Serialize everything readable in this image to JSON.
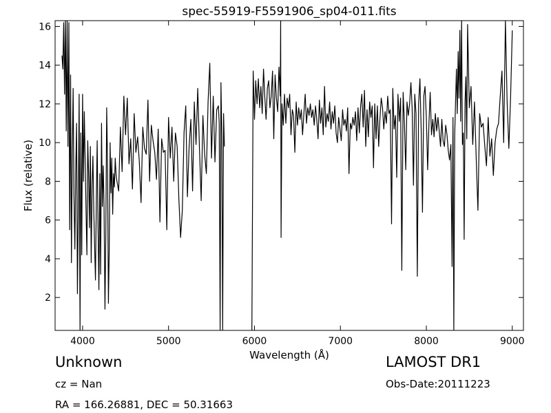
{
  "chart_data": {
    "type": "line",
    "title": "spec-55919-F5591906_sp04-011.fits",
    "xlabel": "Wavelength (Å)",
    "ylabel": "Flux (relative)",
    "xlim": [
      3680,
      9130
    ],
    "ylim": [
      0.3,
      16.3
    ],
    "xticks": [
      4000,
      5000,
      6000,
      7000,
      8000,
      9000
    ],
    "yticks": [
      2,
      4,
      6,
      8,
      10,
      12,
      14,
      16
    ],
    "grid": false,
    "legend": "none",
    "line_color": "#000000",
    "series": [
      {
        "segments": [
          {
            "x": [
              3760,
              3770,
              3780,
              3790,
              3800,
              3810,
              3820,
              3830,
              3840,
              3850,
              3860,
              3870,
              3880,
              3890,
              3900,
              3910,
              3920,
              3930,
              3940,
              3950,
              3960,
              3970,
              3980,
              3990,
              4000,
              4010,
              4020,
              4030,
              4040,
              4050,
              4060,
              4070,
              4080,
              4090,
              4100,
              4110,
              4120,
              4130,
              4140,
              4150,
              4160,
              4170,
              4180,
              4190,
              4200,
              4210,
              4220,
              4230,
              4240,
              4250,
              4260,
              4270,
              4280,
              4290,
              4300,
              4310,
              4320,
              4330,
              4340,
              4350,
              4360,
              4370,
              4380,
              4390,
              4400,
              4420,
              4440,
              4460,
              4480,
              4500,
              4520,
              4540,
              4560,
              4580,
              4600,
              4620,
              4640,
              4660,
              4680,
              4700,
              4720,
              4740,
              4760,
              4780,
              4800,
              4820,
              4840,
              4860,
              4880,
              4900,
              4920,
              4940,
              4960,
              4980,
              5000,
              5020,
              5040,
              5060,
              5080,
              5100,
              5120,
              5140,
              5160,
              5180,
              5200,
              5220,
              5240,
              5260,
              5280,
              5300,
              5320,
              5340,
              5360,
              5380,
              5400,
              5420,
              5440,
              5460,
              5480,
              5500,
              5520,
              5540,
              5560,
              5580,
              5590,
              5600,
              5610,
              5620,
              5630,
              5640,
              5650
            ],
            "y": [
              14.5,
              13.8,
              16.2,
              12.5,
              16.3,
              10.6,
              16.3,
              9.8,
              16.2,
              5.5,
              13.5,
              3.8,
              9.6,
              12.8,
              7.2,
              4.5,
              8.5,
              11.0,
              2.2,
              6.5,
              12.5,
              0.3,
              10.5,
              4.2,
              12.5,
              8.0,
              11.6,
              9.0,
              6.5,
              4.2,
              10.1,
              8.3,
              5.6,
              9.8,
              3.8,
              7.8,
              9.3,
              6.6,
              4.6,
              2.9,
              7.1,
              10.1,
              5.5,
              2.4,
              8.4,
              3.2,
              11.0,
              6.7,
              8.8,
              6.6,
              1.4,
              5.1,
              11.8,
              9.0,
              1.7,
              4.5,
              10.0,
              7.4,
              9.2,
              6.3,
              8.4,
              7.7,
              9.2,
              8.3,
              8.0,
              7.5,
              10.8,
              8.5,
              12.4,
              10.4,
              12.3,
              8.9,
              10.2,
              7.6,
              11.5,
              9.5,
              10.3,
              9.0,
              6.9,
              10.8,
              9.7,
              9.4,
              12.2,
              8.0,
              10.9,
              10.1,
              9.5,
              8.1,
              10.7,
              5.9,
              10.2,
              9.5,
              9.6,
              5.5,
              11.3,
              9.2,
              10.8,
              8.0,
              10.5,
              9.8,
              7.1,
              5.1,
              6.5,
              10.5,
              11.9,
              7.2,
              9.8,
              11.2,
              7.5,
              12.1,
              9.9,
              12.8,
              9.7,
              7.0,
              11.4,
              9.4,
              8.4,
              12.1,
              14.1,
              9.2,
              12.4,
              9.0,
              11.7,
              11.9,
              11.0,
              0.3,
              13.1,
              10.3,
              0.3,
              11.5,
              9.8
            ]
          },
          {
            "x": [
              5970,
              5985,
              6000,
              6015,
              6030,
              6045,
              6060,
              6075,
              6090,
              6105,
              6120,
              6135,
              6150,
              6165,
              6180,
              6195,
              6210,
              6225,
              6240,
              6255,
              6270,
              6285,
              6300,
              6305,
              6310,
              6320,
              6335,
              6350,
              6365,
              6380,
              6395,
              6410,
              6425,
              6440,
              6455,
              6470,
              6485,
              6500,
              6515,
              6530,
              6545,
              6560,
              6575,
              6590,
              6605,
              6620,
              6635,
              6650,
              6665,
              6680,
              6695,
              6710,
              6725,
              6740,
              6755,
              6770,
              6785,
              6800,
              6815,
              6830,
              6845,
              6860,
              6875,
              6890,
              6905,
              6920,
              6935,
              6950,
              6965,
              6980,
              6995,
              7010,
              7025,
              7040,
              7055,
              7070,
              7085,
              7100,
              7115,
              7130,
              7145,
              7160,
              7175,
              7190,
              7205,
              7220,
              7235,
              7250,
              7265,
              7280,
              7295,
              7310,
              7325,
              7340,
              7355,
              7370,
              7385,
              7400,
              7415,
              7430,
              7445,
              7460,
              7475,
              7490,
              7505,
              7520,
              7535,
              7550,
              7565,
              7580,
              7595,
              7610,
              7625,
              7640,
              7655,
              7670,
              7685,
              7700,
              7715,
              7730,
              7745,
              7760,
              7775,
              7790,
              7805,
              7820,
              7835,
              7850,
              7865,
              7880,
              7895,
              7910,
              7925,
              7940,
              7955,
              7970,
              7985,
              8000,
              8015,
              8030,
              8045,
              8060,
              8075,
              8090,
              8105,
              8120,
              8135,
              8150,
              8165,
              8180,
              8195,
              8210,
              8225,
              8240,
              8255,
              8270,
              8285,
              8300,
              8310,
              8320,
              8330,
              8340,
              8350,
              8360,
              8370,
              8380,
              8390,
              8400,
              8410,
              8420,
              8430,
              8440,
              8450,
              8460,
              8470,
              8480,
              8500,
              8520,
              8540,
              8560,
              8580,
              8600,
              8620,
              8640,
              8660,
              8680,
              8700,
              8720,
              8740,
              8760,
              8780,
              8800,
              8820,
              8840,
              8860,
              8880,
              8900,
              8920,
              8940,
              8960,
              8980,
              9000
            ],
            "y": [
              0.3,
              13.7,
              11.2,
              13.2,
              12.0,
              13.3,
              11.8,
              12.9,
              11.5,
              13.8,
              12.4,
              11.2,
              12.8,
              13.2,
              11.8,
              12.4,
              13.7,
              10.2,
              13.5,
              12.3,
              11.6,
              13.9,
              12.4,
              16.3,
              5.1,
              12.0,
              10.9,
              12.5,
              11.0,
              12.3,
              11.8,
              12.5,
              10.4,
              11.7,
              11.4,
              9.5,
              12.1,
              10.9,
              11.8,
              11.2,
              11.7,
              10.4,
              11.5,
              12.5,
              11.0,
              11.8,
              11.4,
              12.0,
              11.3,
              11.7,
              10.9,
              11.9,
              11.2,
              10.2,
              12.2,
              11.0,
              11.8,
              10.4,
              12.9,
              10.8,
              11.5,
              11.1,
              12.1,
              10.7,
              11.6,
              11.0,
              11.9,
              10.5,
              10.0,
              11.3,
              10.7,
              10.1,
              11.7,
              10.9,
              11.2,
              10.6,
              11.8,
              8.4,
              11.0,
              10.7,
              11.3,
              10.9,
              11.6,
              10.1,
              11.8,
              10.5,
              11.9,
              12.5,
              10.8,
              12.7,
              9.8,
              11.7,
              10.3,
              12.1,
              11.3,
              11.9,
              8.7,
              12.0,
              10.2,
              11.9,
              9.8,
              11.2,
              12.3,
              11.8,
              10.7,
              11.6,
              11.0,
              12.4,
              11.5,
              11.7,
              5.8,
              12.8,
              10.7,
              11.4,
              8.2,
              12.5,
              11.1,
              12.3,
              3.4,
              12.6,
              11.0,
              8.6,
              12.1,
              11.4,
              12.0,
              13.1,
              11.8,
              7.8,
              12.5,
              11.5,
              3.1,
              12.0,
              13.3,
              10.7,
              6.4,
              12.4,
              12.9,
              11.3,
              8.6,
              11.0,
              12.6,
              10.4,
              11.2,
              10.3,
              11.5,
              10.6,
              11.3,
              10.6,
              9.8,
              11.2,
              10.1,
              9.8,
              10.9,
              10.4,
              9.6,
              9.1,
              9.9,
              3.6,
              11.3,
              0.3,
              10.4,
              12.1,
              13.8,
              11.5,
              14.7,
              12.3,
              15.8,
              11.1,
              16.3,
              9.9,
              10.5,
              5.0,
              12.1,
              13.4,
              10.2,
              16.1,
              11.8,
              12.9,
              9.9,
              12.1,
              9.2,
              6.5,
              11.5,
              10.8,
              11.0,
              9.8,
              8.8,
              11.3,
              9.3,
              10.2,
              8.3,
              10.0,
              10.7,
              11.0,
              12.4,
              13.7,
              10.0,
              16.3,
              12.1,
              9.7,
              12.3,
              15.8
            ]
          }
        ]
      }
    ]
  },
  "info": {
    "object_class": "Unknown",
    "cz": "cz = Nan",
    "coords": "RA = 166.26881, DEC = 50.31663",
    "survey": "LAMOST DR1",
    "obs_date": "Obs-Date:20111223"
  }
}
